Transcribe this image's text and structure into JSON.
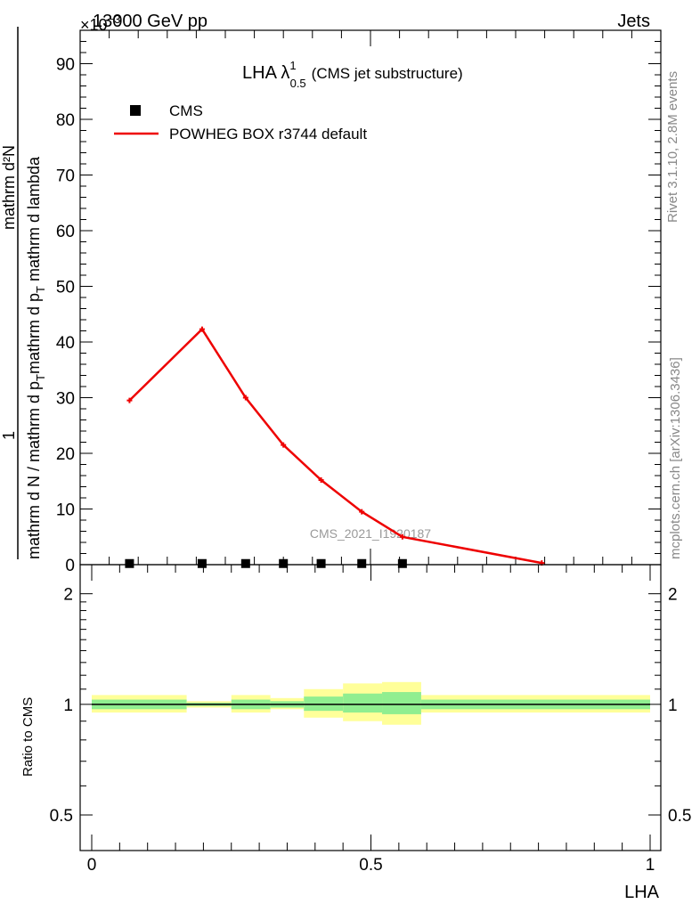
{
  "header": {
    "energy_label": "13000 GeV pp",
    "process_label": "Jets",
    "y_multiplier": "×10",
    "y_multiplier_exp": "−3"
  },
  "side_labels": {
    "rivet": "Rivet 3.1.10,  2.8M events",
    "mcplots": "mcplots.cern.ch [arXiv:1306.3436]"
  },
  "watermark": "CMS_2021_I1920187",
  "chart_data": [
    {
      "type": "line",
      "title_main": "LHA λ",
      "title_sup": "1",
      "title_sub": "0.5",
      "title_tail": "(CMS jet substructure)",
      "ylabel_numerator": "mathrm d²N",
      "ylabel_denominator_a": "mathrm d p",
      "ylabel_denominator_a_sub": "T",
      "ylabel_denominator_b": " mathrm d lambda",
      "ylabel_prefix_numerator": "1",
      "ylabel_prefix_denominator_a": "mathrm d N / mathrm d p",
      "ylabel_prefix_denominator_a_sub": "T",
      "xlim": [
        0,
        1
      ],
      "ylim": [
        0,
        0.096
      ],
      "y_ticks": [
        {
          "value": 0,
          "label": "0"
        },
        {
          "value": 0.01,
          "label": "10"
        },
        {
          "value": 0.02,
          "label": "20"
        },
        {
          "value": 0.03,
          "label": "30"
        },
        {
          "value": 0.04,
          "label": "40"
        },
        {
          "value": 0.05,
          "label": "50"
        },
        {
          "value": 0.06,
          "label": "60"
        },
        {
          "value": 0.07,
          "label": "70"
        },
        {
          "value": 0.08,
          "label": "80"
        },
        {
          "value": 0.09,
          "label": "90"
        }
      ],
      "legend": [
        {
          "name": "CMS",
          "marker": "square",
          "color": "#000000"
        },
        {
          "name": "POWHEG BOX r3744 default",
          "marker": "line",
          "color": "#ee0000"
        }
      ],
      "series": [
        {
          "name": "CMS",
          "color": "#000000",
          "points": [
            {
              "x": 0.085,
              "y": 0.0002
            },
            {
              "x": 0.21,
              "y": 0.0002
            },
            {
              "x": 0.285,
              "y": 0.0002
            },
            {
              "x": 0.35,
              "y": 0.0002
            },
            {
              "x": 0.415,
              "y": 0.0002
            },
            {
              "x": 0.485,
              "y": 0.0002
            },
            {
              "x": 0.555,
              "y": 0.0002
            }
          ]
        },
        {
          "name": "POWHEG BOX r3744 default",
          "color": "#ee0000",
          "points": [
            {
              "x": 0.085,
              "y": 0.0295
            },
            {
              "x": 0.21,
              "y": 0.0423
            },
            {
              "x": 0.285,
              "y": 0.03
            },
            {
              "x": 0.35,
              "y": 0.0215
            },
            {
              "x": 0.415,
              "y": 0.0152
            },
            {
              "x": 0.485,
              "y": 0.0095
            },
            {
              "x": 0.555,
              "y": 0.005
            },
            {
              "x": 0.795,
              "y": 0.0003
            }
          ]
        }
      ]
    },
    {
      "type": "area",
      "ylabel": "Ratio to CMS",
      "xlabel": "LHA",
      "xlim": [
        0,
        1
      ],
      "ylim": [
        0.4,
        2.4
      ],
      "log_y": true,
      "x_ticks": [
        {
          "value": 0,
          "label": "0"
        },
        {
          "value": 0.5,
          "label": "0.5"
        },
        {
          "value": 1,
          "label": "1"
        }
      ],
      "y_ticks": [
        {
          "value": 0.5,
          "label": "0.5"
        },
        {
          "value": 1,
          "label": "1"
        },
        {
          "value": 2,
          "label": "2"
        }
      ],
      "reference_line": 1,
      "bands": [
        {
          "x0": 0.0,
          "x1": 0.17,
          "inner": [
            0.97,
            1.03
          ],
          "outer": [
            0.95,
            1.06
          ]
        },
        {
          "x0": 0.17,
          "x1": 0.25,
          "inner": [
            0.99,
            1.01
          ],
          "outer": [
            0.98,
            1.02
          ]
        },
        {
          "x0": 0.25,
          "x1": 0.32,
          "inner": [
            0.97,
            1.03
          ],
          "outer": [
            0.95,
            1.06
          ]
        },
        {
          "x0": 0.32,
          "x1": 0.38,
          "inner": [
            0.98,
            1.02
          ],
          "outer": [
            0.97,
            1.04
          ]
        },
        {
          "x0": 0.38,
          "x1": 0.45,
          "inner": [
            0.96,
            1.05
          ],
          "outer": [
            0.92,
            1.1
          ]
        },
        {
          "x0": 0.45,
          "x1": 0.52,
          "inner": [
            0.95,
            1.07
          ],
          "outer": [
            0.9,
            1.14
          ]
        },
        {
          "x0": 0.52,
          "x1": 0.59,
          "inner": [
            0.94,
            1.08
          ],
          "outer": [
            0.88,
            1.15
          ]
        },
        {
          "x0": 0.59,
          "x1": 1.0,
          "inner": [
            0.97,
            1.03
          ],
          "outer": [
            0.95,
            1.06
          ]
        }
      ],
      "band_colors": {
        "inner": "#90ee90",
        "outer": "#ffff99"
      }
    }
  ]
}
